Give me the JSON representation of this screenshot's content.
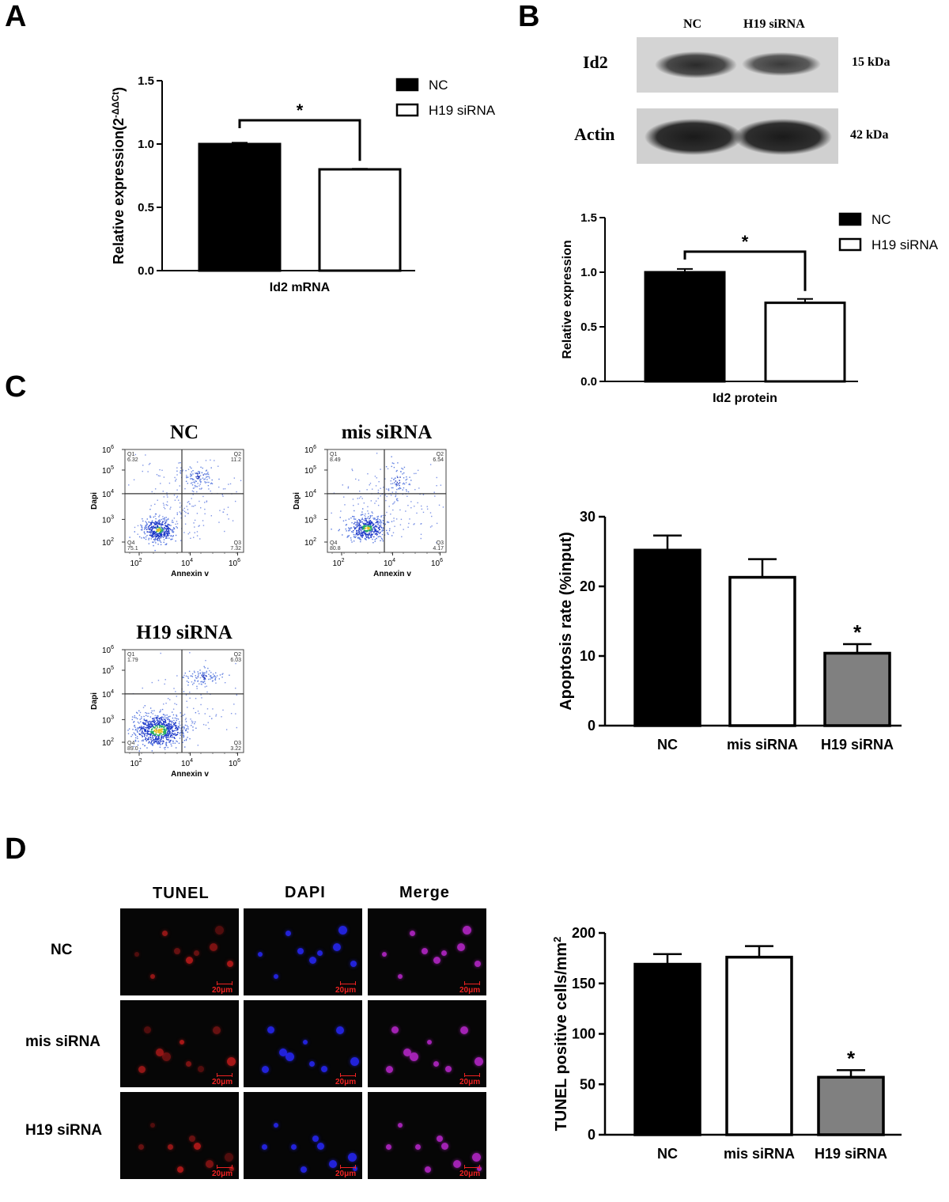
{
  "panels": {
    "a": "A",
    "b": "B",
    "c": "C",
    "d": "D"
  },
  "blot": {
    "columns": [
      "NC",
      "H19 siRNA"
    ],
    "rows": [
      {
        "name": "Id2",
        "size": "15 kDa"
      },
      {
        "name": "Actin",
        "size": "42 kDa"
      }
    ]
  },
  "flow": {
    "xlabel": "Annexin v",
    "ylabel": "Dapi",
    "ticks_exp": [
      "2",
      "4",
      "6"
    ],
    "y_ticks_exp": [
      "6",
      "5",
      "4",
      "3",
      "2"
    ],
    "tick_base": "10",
    "plots": [
      {
        "title": "NC",
        "q1": "Q1",
        "q1v": "6.32",
        "q2": "Q2",
        "q2v": "11.2",
        "q3": "Q3",
        "q3v": "7.32",
        "q4": "Q4",
        "q4v": "75.1"
      },
      {
        "title": "mis siRNA",
        "q1": "Q1",
        "q1v": "8.49",
        "q2": "Q2",
        "q2v": "6.54",
        "q3": "Q3",
        "q3v": "4.17",
        "q4": "Q4",
        "q4v": "80.8"
      },
      {
        "title": "H19 siRNA",
        "q1": "Q1",
        "q1v": "1.79",
        "q2": "Q2",
        "q2v": "6.03",
        "q3": "Q3",
        "q3v": "3.22",
        "q4": "Q4",
        "q4v": "89.0"
      }
    ]
  },
  "micro": {
    "columns": [
      "TUNEL",
      "DAPI",
      "Merge"
    ],
    "rows": [
      "NC",
      "mis siRNA",
      "H19 siRNA"
    ],
    "scale": "20μm"
  },
  "chart_data": [
    {
      "id": "A",
      "type": "bar",
      "categories": [
        "Id2 mRNA"
      ],
      "series": [
        {
          "name": "NC",
          "values": [
            1.0
          ],
          "error": [
            0.01
          ]
        },
        {
          "name": "H19 siRNA",
          "values": [
            0.8
          ],
          "error": [
            0.005
          ]
        }
      ],
      "ylabel": "Relative expression(2",
      "ylabel_sup": "-ΔΔCt",
      "ylabel_end": ")",
      "ylim": [
        0,
        1.5
      ],
      "yticks": [
        "0.0",
        "0.5",
        "1.0",
        "1.5"
      ],
      "significance": "*",
      "legend": "top-right"
    },
    {
      "id": "B",
      "type": "bar",
      "categories": [
        "Id2 protein"
      ],
      "series": [
        {
          "name": "NC",
          "values": [
            1.0
          ],
          "error": [
            0.03
          ]
        },
        {
          "name": "H19 siRNA",
          "values": [
            0.72
          ],
          "error": [
            0.035
          ]
        }
      ],
      "ylabel": "Relative expression",
      "ylim": [
        0,
        1.5
      ],
      "yticks": [
        "0.0",
        "0.5",
        "1.0",
        "1.5"
      ],
      "significance": "*",
      "legend": "top-right"
    },
    {
      "id": "C",
      "type": "bar",
      "categories": [
        "NC",
        "mis siRNA",
        "H19 siRNA"
      ],
      "values": [
        25.2,
        21.3,
        10.4
      ],
      "error": [
        2.1,
        2.6,
        1.3
      ],
      "fills": [
        "#000000",
        "#ffffff",
        "#808080"
      ],
      "ylabel": "Apoptosis rate (%input)",
      "ylim": [
        0,
        30
      ],
      "yticks": [
        "0",
        "10",
        "20",
        "30"
      ],
      "significance": [
        "",
        "",
        "*"
      ]
    },
    {
      "id": "D",
      "type": "bar",
      "categories": [
        "NC",
        "mis siRNA",
        "H19 siRNA"
      ],
      "values": [
        169,
        176,
        57
      ],
      "error": [
        10,
        11,
        7
      ],
      "fills": [
        "#000000",
        "#ffffff",
        "#808080"
      ],
      "ylabel": "TUNEL positive cells/mm",
      "ylabel_sup": "2",
      "ylim": [
        0,
        200
      ],
      "yticks": [
        "0",
        "50",
        "100",
        "150",
        "200"
      ],
      "significance": [
        "",
        "",
        "*"
      ]
    }
  ]
}
